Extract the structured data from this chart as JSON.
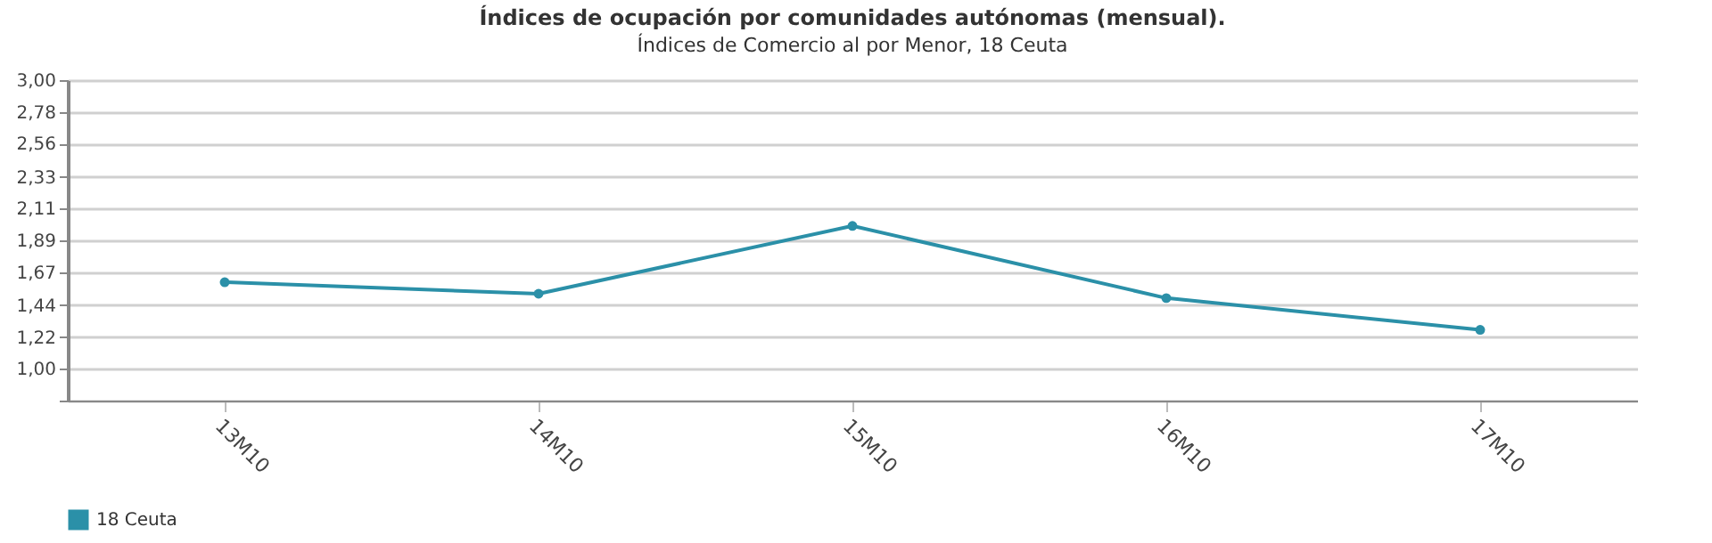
{
  "chart_data": {
    "type": "line",
    "title": "Índices de ocupación por comunidades autónomas (mensual).",
    "subtitle": "Índices de Comercio al por Menor, 18 Ceuta",
    "categories": [
      "13M10",
      "14M10",
      "15M10",
      "16M10",
      "17M10"
    ],
    "series": [
      {
        "name": "18 Ceuta",
        "color": "#2b90a8",
        "values": [
          1.6,
          1.52,
          1.99,
          1.49,
          1.27
        ]
      }
    ],
    "ylim": [
      0.78,
      3.0
    ],
    "yticks": [
      {
        "value": 0.78,
        "label": null
      },
      {
        "value": 1.0,
        "label": "1,00"
      },
      {
        "value": 1.22,
        "label": "1,22"
      },
      {
        "value": 1.44,
        "label": "1,44"
      },
      {
        "value": 1.67,
        "label": "1,67"
      },
      {
        "value": 1.89,
        "label": "1,89"
      },
      {
        "value": 2.11,
        "label": "2,11"
      },
      {
        "value": 2.33,
        "label": "2,33"
      },
      {
        "value": 2.56,
        "label": "2,56"
      },
      {
        "value": 2.78,
        "label": "2,78"
      },
      {
        "value": 3.0,
        "label": "3,00"
      }
    ],
    "grid": "y",
    "legend": "bottom",
    "marker": "circle",
    "line_style": "solid"
  }
}
